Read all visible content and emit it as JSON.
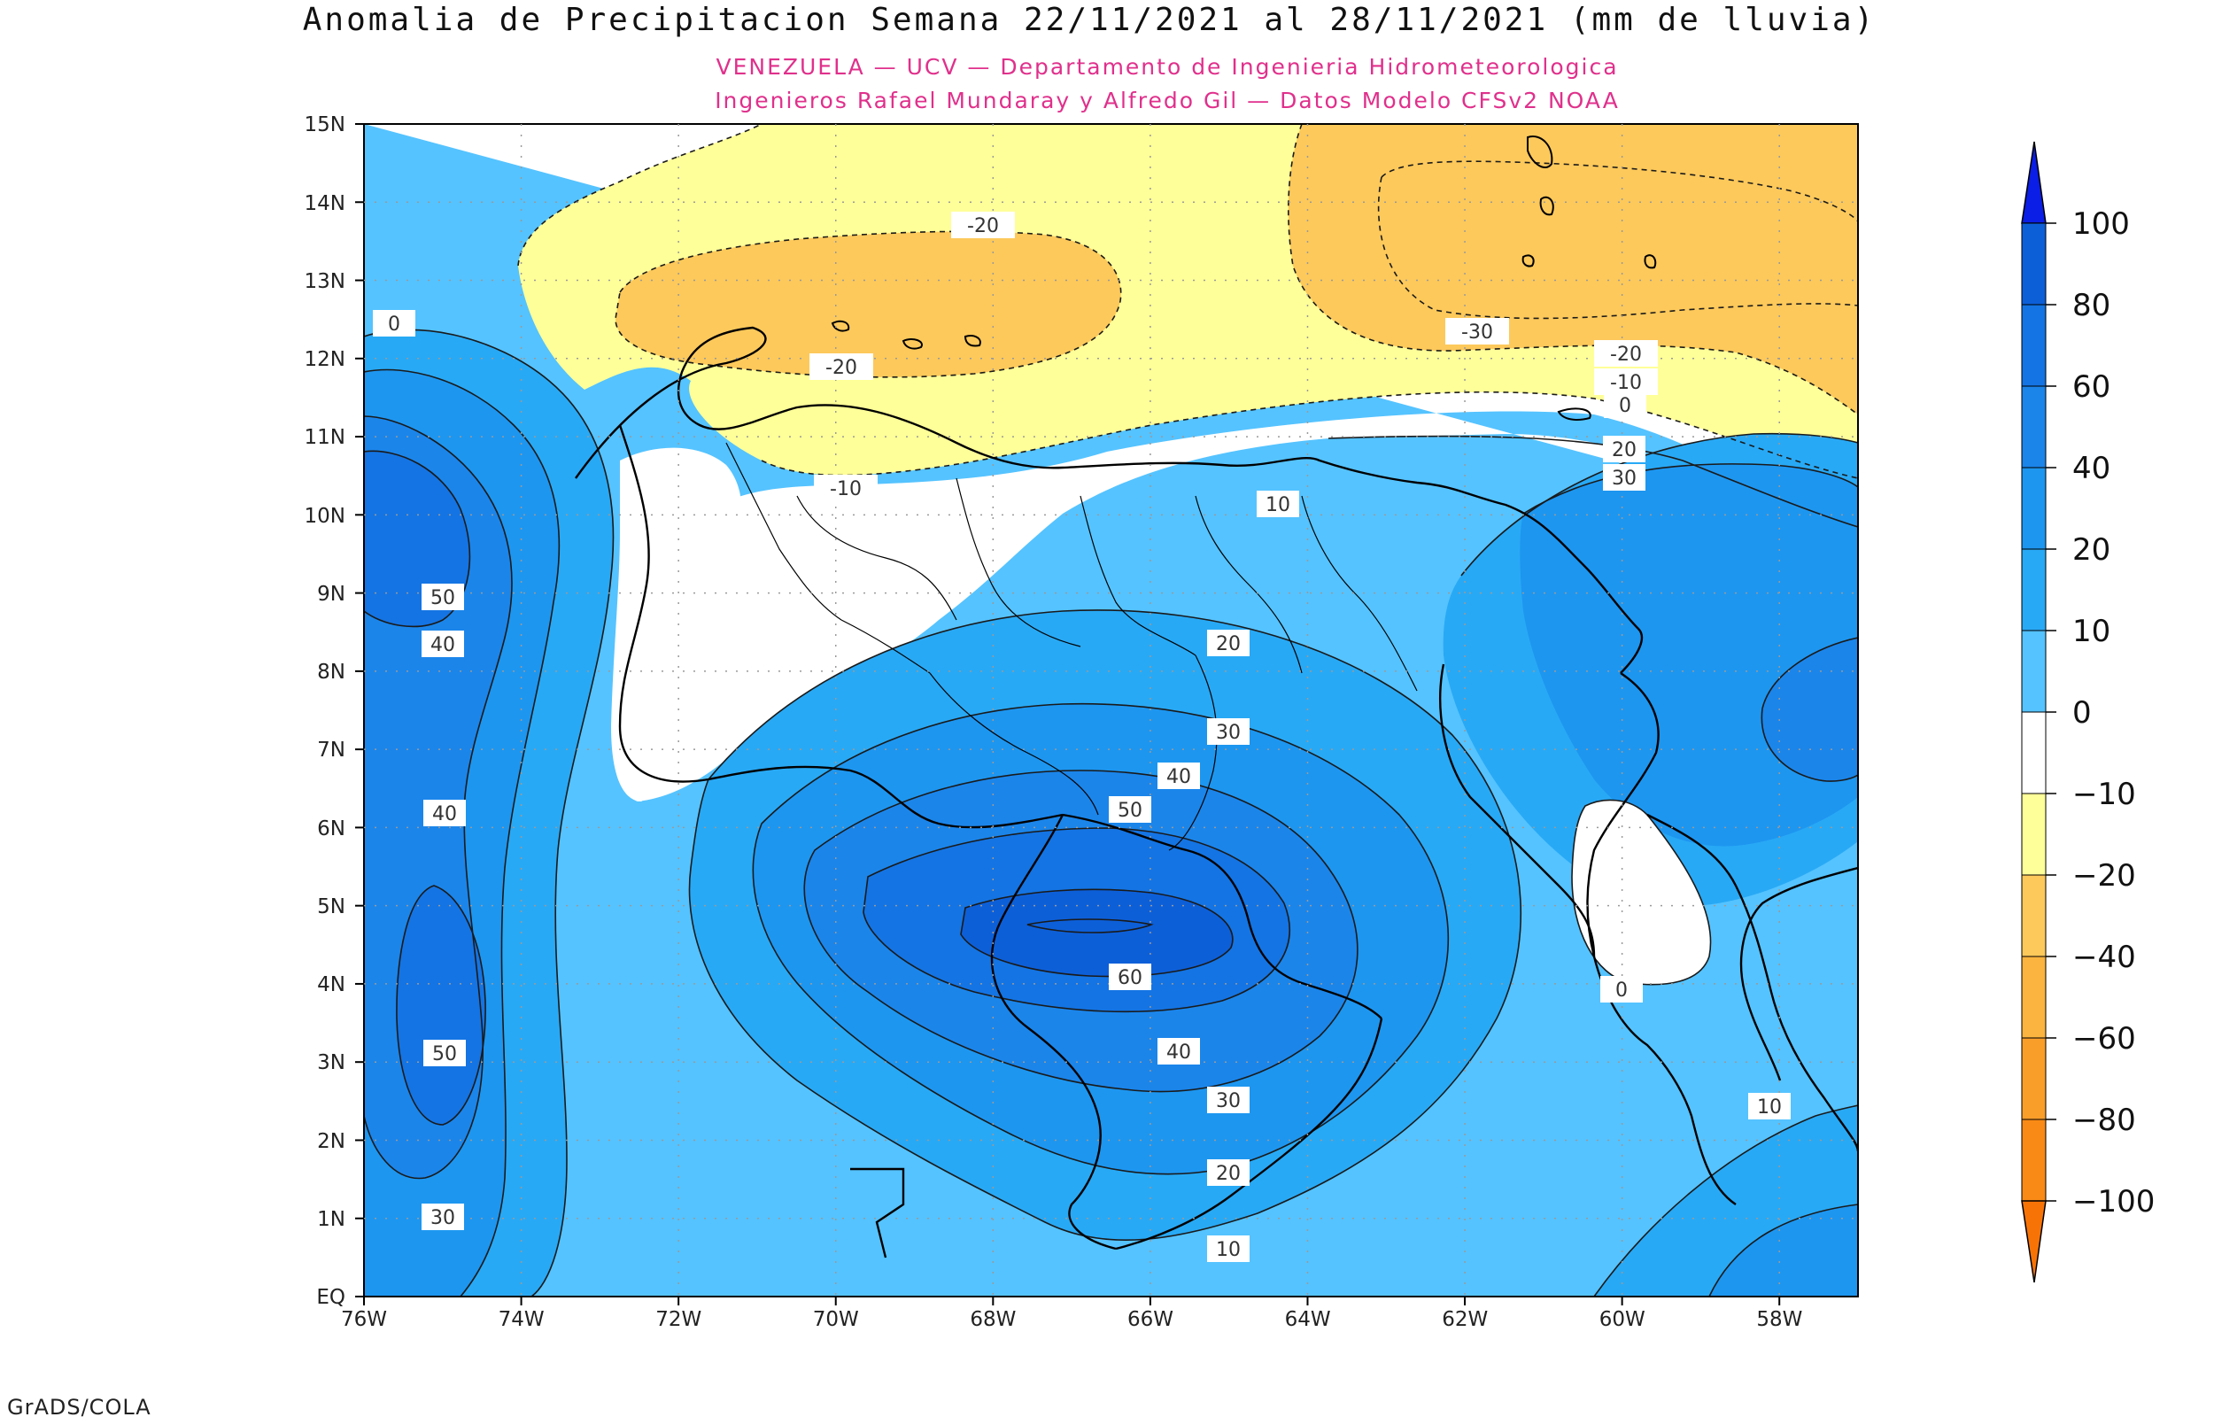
{
  "title": "Anomalia de Precipitacion Semana 22/11/2021 al 28/11/2021 (mm de lluvia)",
  "subtitle_1": "VENEZUELA — UCV — Departamento de Ingenieria Hidrometeorologica",
  "subtitle_2": "Ingenieros Rafael Mundaray y Alfredo Gil — Datos Modelo CFSv2 NOAA",
  "footer": "GrADS/COLA",
  "colors": {
    "positive": [
      "#55c3ff",
      "#28a9f5",
      "#1d96f0",
      "#1b85ea",
      "#1474e3",
      "#0d5fd8"
    ],
    "negative": [
      "#ffff99",
      "#fdc95b",
      "#fbb43f",
      "#fa9e2a",
      "#f98a16",
      "#f87306"
    ],
    "neutral": "#ffffff",
    "top_arrow": "#0a1ee6",
    "bottom_arrow": "#f87306"
  },
  "map": {
    "lon_labels": [
      "76W",
      "74W",
      "72W",
      "70W",
      "68W",
      "66W",
      "64W",
      "62W",
      "60W",
      "58W"
    ],
    "lat_labels": [
      "EQ",
      "1N",
      "2N",
      "3N",
      "4N",
      "5N",
      "6N",
      "7N",
      "8N",
      "9N",
      "10N",
      "11N",
      "12N",
      "13N",
      "14N",
      "15N"
    ]
  },
  "colorbar": {
    "labels": [
      "100",
      "80",
      "60",
      "40",
      "20",
      "10",
      "0",
      "−10",
      "−20",
      "−40",
      "−60",
      "−80",
      "−100"
    ]
  },
  "contour_labels": [
    "-20",
    "-20",
    "-10",
    "-30",
    "-20",
    "-10",
    "0",
    "20",
    "30",
    "10",
    "0",
    "50",
    "40",
    "40",
    "50",
    "30",
    "20",
    "30",
    "40",
    "50",
    "60",
    "40",
    "30",
    "20",
    "10",
    "0",
    "10"
  ]
}
